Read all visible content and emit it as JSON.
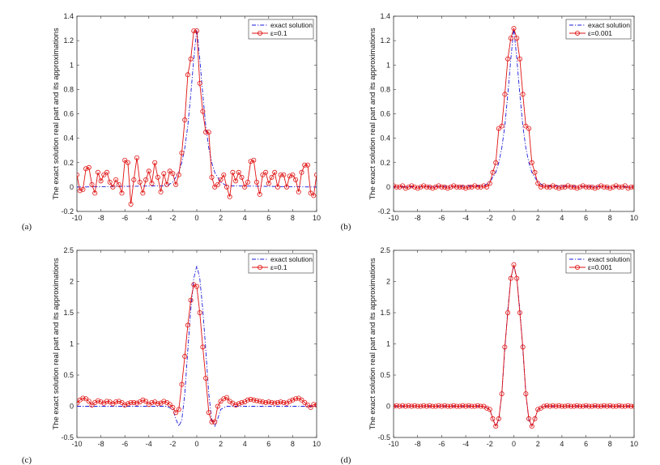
{
  "chart_data": [
    {
      "panel": "(a)",
      "type": "line",
      "ylabel": "The exact solution real part and its approximations",
      "xlim": [
        -10,
        10
      ],
      "ylim": [
        -0.2,
        1.4
      ],
      "xticks": [
        -10,
        -8,
        -6,
        -4,
        -2,
        0,
        2,
        4,
        6,
        8,
        10
      ],
      "yticks": [
        -0.2,
        0,
        0.2,
        0.4,
        0.6,
        0.8,
        1,
        1.2,
        1.4
      ],
      "ytick_labels": [
        "-0.2",
        "0",
        "0.2",
        "0.4",
        "0.6",
        "0.8",
        "1",
        "1.2",
        "1.4"
      ],
      "legend": [
        "exact solution",
        "ε=0.1"
      ],
      "series": [
        {
          "name": "exact solution",
          "style": "dashdot",
          "color": "#1a1adb",
          "x": [
            -10,
            -2.5,
            -2,
            -1.5,
            -1.25,
            -1,
            -0.75,
            -0.5,
            -0.25,
            0,
            0.25,
            0.5,
            0.75,
            1,
            1.25,
            1.5,
            2,
            2.5,
            10
          ],
          "y": [
            0,
            0.01,
            0.04,
            0.12,
            0.2,
            0.32,
            0.5,
            0.76,
            1.05,
            1.3,
            1.05,
            0.76,
            0.5,
            0.32,
            0.2,
            0.12,
            0.04,
            0.01,
            0
          ]
        },
        {
          "name": "ε=0.1",
          "style": "line-circle",
          "color": "#e01010",
          "x": [
            -10,
            -9.75,
            -9.5,
            -9.25,
            -9,
            -8.75,
            -8.5,
            -8.25,
            -8,
            -7.75,
            -7.5,
            -7.25,
            -7,
            -6.75,
            -6.5,
            -6.25,
            -6,
            -5.75,
            -5.5,
            -5.25,
            -5,
            -4.75,
            -4.5,
            -4.25,
            -4,
            -3.75,
            -3.5,
            -3.25,
            -3,
            -2.75,
            -2.5,
            -2.25,
            -2,
            -1.75,
            -1.5,
            -1.25,
            -1,
            -0.75,
            -0.5,
            -0.25,
            0,
            0.25,
            0.5,
            0.75,
            1,
            1.25,
            1.5,
            1.75,
            2,
            2.25,
            2.5,
            2.75,
            3,
            3.25,
            3.5,
            3.75,
            4,
            4.25,
            4.5,
            4.75,
            5,
            5.25,
            5.5,
            5.75,
            6,
            6.25,
            6.5,
            6.75,
            7,
            7.25,
            7.5,
            7.75,
            8,
            8.25,
            8.5,
            8.75,
            9,
            9.25,
            9.5,
            9.75,
            10
          ],
          "y": [
            0.1,
            -0.03,
            -0.02,
            0.15,
            0.16,
            0.02,
            -0.05,
            0.12,
            0.05,
            0.1,
            0.12,
            0.04,
            0.0,
            0.06,
            0.02,
            -0.05,
            0.22,
            0.2,
            -0.14,
            0.06,
            0.24,
            0.04,
            -0.05,
            0.06,
            0.13,
            0.03,
            0.2,
            0.08,
            -0.04,
            0.11,
            0.02,
            0.13,
            0.11,
            0.02,
            0.1,
            0.28,
            0.55,
            0.92,
            1.05,
            1.28,
            1.28,
            0.85,
            0.62,
            0.45,
            0.45,
            0.08,
            -0.0,
            0.02,
            0.06,
            0.1,
            0.0,
            -0.08,
            0.12,
            0.05,
            0.12,
            0.08,
            0.0,
            0.04,
            0.21,
            0.22,
            0.04,
            -0.06,
            0.1,
            0.12,
            0.03,
            0.08,
            0.12,
            0.0,
            0.1,
            0.1,
            0.0,
            0.09,
            0.1,
            0.06,
            -0.04,
            0.12,
            0.18,
            0.18,
            -0.05,
            -0.07,
            0.1
          ]
        }
      ]
    },
    {
      "panel": "(b)",
      "type": "line",
      "ylabel": "The exact solution real part and its approximations",
      "xlim": [
        -10,
        10
      ],
      "ylim": [
        -0.2,
        1.4
      ],
      "xticks": [
        -10,
        -8,
        -6,
        -4,
        -2,
        0,
        2,
        4,
        6,
        8,
        10
      ],
      "yticks": [
        -0.2,
        0,
        0.2,
        0.4,
        0.6,
        0.8,
        1,
        1.2,
        1.4
      ],
      "ytick_labels": [
        "-0.2",
        "0",
        "0.2",
        "0.4",
        "0.6",
        "0.8",
        "1",
        "1.2",
        "1.4"
      ],
      "legend": [
        "exact solution",
        "ε=0.001"
      ],
      "series": [
        {
          "name": "exact solution",
          "style": "dashdot",
          "color": "#1a1adb",
          "x": [
            -10,
            -2.5,
            -2,
            -1.5,
            -1.25,
            -1,
            -0.75,
            -0.5,
            -0.25,
            0,
            0.25,
            0.5,
            0.75,
            1,
            1.25,
            1.5,
            2,
            2.5,
            10
          ],
          "y": [
            0,
            0.01,
            0.04,
            0.12,
            0.2,
            0.32,
            0.5,
            0.76,
            1.05,
            1.3,
            1.05,
            0.76,
            0.5,
            0.32,
            0.2,
            0.12,
            0.04,
            0.01,
            0
          ]
        },
        {
          "name": "ε=0.001",
          "style": "line-circle",
          "color": "#e01010",
          "x": [
            -10,
            -9.75,
            -9.5,
            -9.25,
            -9,
            -8.75,
            -8.5,
            -8.25,
            -8,
            -7.75,
            -7.5,
            -7.25,
            -7,
            -6.75,
            -6.5,
            -6.25,
            -6,
            -5.75,
            -5.5,
            -5.25,
            -5,
            -4.75,
            -4.5,
            -4.25,
            -4,
            -3.75,
            -3.5,
            -3.25,
            -3,
            -2.75,
            -2.5,
            -2.25,
            -2,
            -1.75,
            -1.5,
            -1.25,
            -1,
            -0.75,
            -0.5,
            -0.25,
            0,
            0.25,
            0.5,
            0.75,
            1,
            1.25,
            1.5,
            1.75,
            2,
            2.25,
            2.5,
            2.75,
            3,
            3.25,
            3.5,
            3.75,
            4,
            4.25,
            4.5,
            4.75,
            5,
            5.25,
            5.5,
            5.75,
            6,
            6.25,
            6.5,
            6.75,
            7,
            7.25,
            7.5,
            7.75,
            8,
            8.25,
            8.5,
            8.75,
            9,
            9.25,
            9.5,
            9.75,
            10
          ],
          "y": [
            0.01,
            0.0,
            0.0,
            0.01,
            -0.01,
            0.0,
            0.01,
            0.0,
            -0.01,
            0.0,
            0.01,
            0.0,
            0.0,
            -0.01,
            0.0,
            0.01,
            0.0,
            0.0,
            -0.01,
            0.0,
            0.01,
            0.0,
            0.0,
            0.0,
            -0.01,
            0.0,
            0.0,
            0.01,
            0.0,
            0.0,
            0.01,
            0.0,
            0.03,
            0.12,
            0.2,
            0.48,
            0.5,
            0.76,
            1.05,
            1.22,
            1.3,
            1.22,
            1.05,
            0.76,
            0.5,
            0.48,
            0.2,
            0.12,
            0.03,
            0.0,
            0.01,
            0.0,
            0.0,
            0.01,
            0.0,
            -0.01,
            0.0,
            0.0,
            0.01,
            0.0,
            0.0,
            -0.01,
            0.0,
            0.01,
            0.0,
            0.0,
            0.0,
            -0.01,
            0.0,
            0.01,
            0.0,
            0.0,
            -0.01,
            0.0,
            0.01,
            0.0,
            0.0,
            0.01,
            -0.01,
            0.0,
            0.0
          ]
        }
      ]
    },
    {
      "panel": "(c)",
      "type": "line",
      "ylabel": "The exact solution real part and its approximations",
      "xlim": [
        -10,
        10
      ],
      "ylim": [
        -0.5,
        2.5
      ],
      "xticks": [
        -10,
        -8,
        -6,
        -4,
        -2,
        0,
        2,
        4,
        6,
        8,
        10
      ],
      "yticks": [
        -0.5,
        0,
        0.5,
        1,
        1.5,
        2,
        2.5
      ],
      "ytick_labels": [
        "-0.5",
        "0",
        "0.5",
        "1",
        "1.5",
        "2",
        "2.5"
      ],
      "legend": [
        "exact solution",
        "ε=0.1"
      ],
      "series": [
        {
          "name": "exact solution",
          "style": "dashdot",
          "color": "#1a1adb",
          "x": [
            -10,
            -2.5,
            -2,
            -1.75,
            -1.5,
            -1.25,
            -1,
            -0.75,
            -0.5,
            -0.25,
            0,
            0.25,
            0.5,
            0.75,
            1,
            1.25,
            1.5,
            1.75,
            2,
            2.5,
            10
          ],
          "y": [
            0,
            0,
            -0.05,
            -0.2,
            -0.32,
            -0.22,
            0.2,
            0.9,
            1.55,
            2.05,
            2.25,
            2.05,
            1.55,
            0.9,
            0.2,
            -0.22,
            -0.32,
            -0.2,
            -0.05,
            0,
            0
          ]
        },
        {
          "name": "ε=0.1",
          "style": "line-circle",
          "color": "#e01010",
          "x": [
            -10,
            -9.75,
            -9.5,
            -9.25,
            -9,
            -8.75,
            -8.5,
            -8.25,
            -8,
            -7.75,
            -7.5,
            -7.25,
            -7,
            -6.75,
            -6.5,
            -6.25,
            -6,
            -5.75,
            -5.5,
            -5.25,
            -5,
            -4.75,
            -4.5,
            -4.25,
            -4,
            -3.75,
            -3.5,
            -3.25,
            -3,
            -2.75,
            -2.5,
            -2.25,
            -2,
            -1.75,
            -1.5,
            -1.25,
            -1,
            -0.75,
            -0.5,
            -0.25,
            0,
            0.25,
            0.5,
            0.75,
            1,
            1.25,
            1.5,
            1.75,
            2,
            2.25,
            2.5,
            2.75,
            3,
            3.25,
            3.5,
            3.75,
            4,
            4.25,
            4.5,
            4.75,
            5,
            5.25,
            5.5,
            5.75,
            6,
            6.25,
            6.5,
            6.75,
            7,
            7.25,
            7.5,
            7.75,
            8,
            8.25,
            8.5,
            8.75,
            9,
            9.25,
            9.5,
            9.75,
            10
          ],
          "y": [
            0.05,
            0.1,
            0.13,
            0.12,
            0.08,
            0.02,
            0.06,
            0.09,
            0.07,
            0.05,
            0.08,
            0.07,
            0.04,
            0.07,
            0.08,
            0.06,
            0.02,
            0.04,
            0.06,
            0.06,
            0.05,
            0.07,
            0.1,
            0.08,
            0.03,
            0.06,
            0.07,
            0.04,
            0.05,
            0.08,
            0.06,
            0.03,
            -0.02,
            -0.1,
            -0.05,
            0.35,
            0.8,
            1.3,
            1.7,
            1.95,
            1.92,
            1.5,
            0.95,
            0.45,
            -0.1,
            -0.25,
            -0.25,
            0.0,
            0.08,
            0.12,
            0.14,
            0.08,
            0.05,
            0.02,
            0.04,
            0.06,
            0.07,
            0.1,
            0.11,
            0.1,
            0.09,
            0.08,
            0.07,
            0.06,
            0.07,
            0.06,
            0.05,
            0.06,
            0.07,
            0.06,
            0.05,
            0.08,
            0.1,
            0.12,
            0.13,
            0.1,
            0.06,
            0.02,
            -0.02,
            0.03,
            0.02
          ]
        }
      ]
    },
    {
      "panel": "(d)",
      "type": "line",
      "ylabel": "The exact solution real part and its approximations",
      "xlim": [
        -10,
        10
      ],
      "ylim": [
        -0.5,
        2.5
      ],
      "xticks": [
        -10,
        -8,
        -6,
        -4,
        -2,
        0,
        2,
        4,
        6,
        8,
        10
      ],
      "yticks": [
        -0.5,
        0,
        0.5,
        1,
        1.5,
        2,
        2.5
      ],
      "ytick_labels": [
        "-0.5",
        "0",
        "0.5",
        "1",
        "1.5",
        "2",
        "2.5"
      ],
      "legend": [
        "exact solution",
        "ε=0.001"
      ],
      "series": [
        {
          "name": "exact solution",
          "style": "dashdot",
          "color": "#1a1adb",
          "x": [
            -10,
            -2.5,
            -2,
            -1.75,
            -1.5,
            -1.25,
            -1,
            -0.75,
            -0.5,
            -0.25,
            0,
            0.25,
            0.5,
            0.75,
            1,
            1.25,
            1.5,
            1.75,
            2,
            2.5,
            10
          ],
          "y": [
            0,
            0,
            -0.05,
            -0.2,
            -0.32,
            -0.22,
            0.2,
            0.9,
            1.55,
            2.05,
            2.25,
            2.05,
            1.55,
            0.9,
            0.2,
            -0.22,
            -0.32,
            -0.2,
            -0.05,
            0,
            0
          ]
        },
        {
          "name": "ε=0.001",
          "style": "line-circle",
          "color": "#e01010",
          "x": [
            -10,
            -9.75,
            -9.5,
            -9.25,
            -9,
            -8.75,
            -8.5,
            -8.25,
            -8,
            -7.75,
            -7.5,
            -7.25,
            -7,
            -6.75,
            -6.5,
            -6.25,
            -6,
            -5.75,
            -5.5,
            -5.25,
            -5,
            -4.75,
            -4.5,
            -4.25,
            -4,
            -3.75,
            -3.5,
            -3.25,
            -3,
            -2.75,
            -2.5,
            -2.25,
            -2,
            -1.75,
            -1.5,
            -1.25,
            -1,
            -0.75,
            -0.5,
            -0.25,
            0,
            0.25,
            0.5,
            0.75,
            1,
            1.25,
            1.5,
            1.75,
            2,
            2.25,
            2.5,
            2.75,
            3,
            3.25,
            3.5,
            3.75,
            4,
            4.25,
            4.5,
            4.75,
            5,
            5.25,
            5.5,
            5.75,
            6,
            6.25,
            6.5,
            6.75,
            7,
            7.25,
            7.5,
            7.75,
            8,
            8.25,
            8.5,
            8.75,
            9,
            9.25,
            9.5,
            9.75,
            10
          ],
          "y": [
            0.0,
            0.01,
            0.0,
            0.01,
            0.0,
            0.01,
            0.0,
            0.01,
            0.0,
            0.0,
            0.01,
            0.0,
            0.01,
            0.0,
            0.0,
            0.01,
            0.0,
            0.01,
            0.0,
            0.0,
            0.01,
            0.0,
            0.0,
            0.01,
            0.0,
            0.01,
            0.0,
            0.0,
            0.01,
            0.0,
            0.0,
            -0.03,
            -0.05,
            -0.2,
            -0.32,
            -0.2,
            0.2,
            0.95,
            1.5,
            2.05,
            2.27,
            2.05,
            1.5,
            0.95,
            0.2,
            -0.2,
            -0.32,
            -0.2,
            -0.05,
            -0.03,
            0.0,
            0.01,
            0.0,
            0.01,
            0.0,
            0.01,
            0.0,
            0.0,
            0.01,
            0.0,
            0.0,
            0.01,
            0.0,
            0.0,
            0.01,
            0.0,
            0.0,
            0.01,
            0.0,
            0.0,
            0.01,
            0.0,
            0.01,
            0.0,
            0.0,
            0.01,
            0.0,
            0.0,
            0.01,
            0.0,
            0.0
          ]
        }
      ]
    }
  ]
}
